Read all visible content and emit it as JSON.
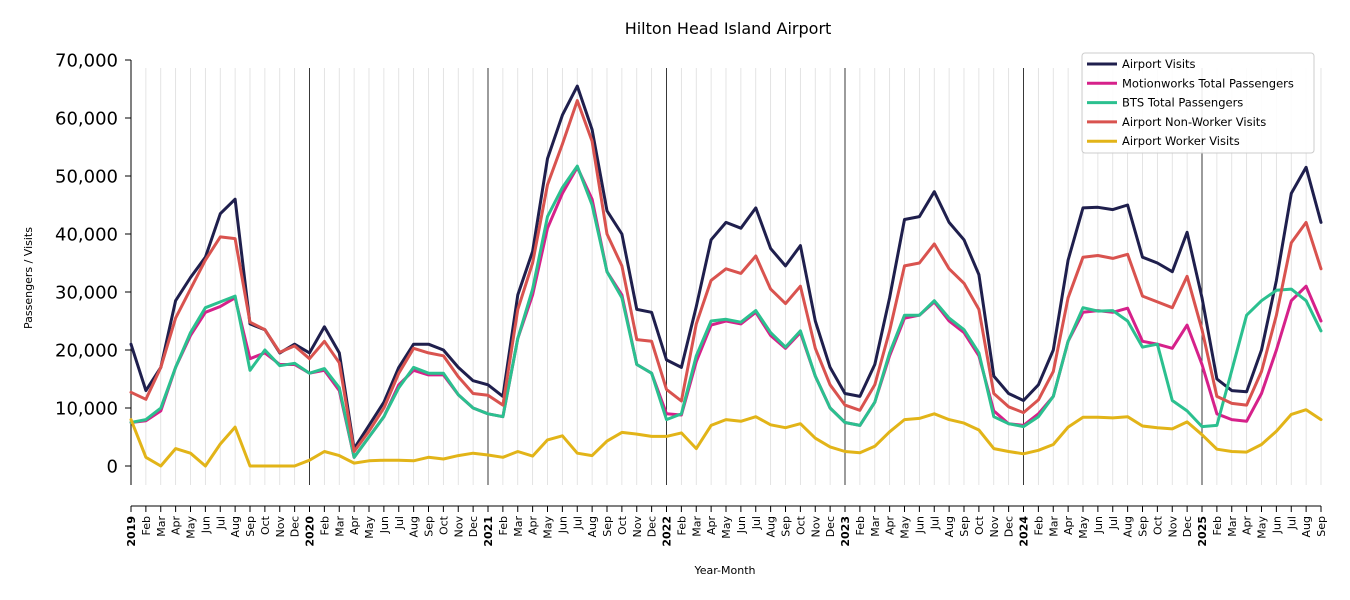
{
  "chart_data": {
    "type": "line",
    "title": "Hilton Head Island Airport",
    "xlabel": "Year-Month",
    "ylabel": "Passengers / Visits",
    "ylim": [
      -3000,
      70000
    ],
    "yticks": [
      0,
      10000,
      20000,
      30000,
      40000,
      50000,
      60000,
      70000
    ],
    "ytick_labels": [
      "0",
      "10,000",
      "20,000",
      "30,000",
      "40,000",
      "50,000",
      "60,000",
      "70,000"
    ],
    "grid": "vertical monthly gridlines, black lines at year starts",
    "legend_position": "top-right",
    "x": [
      "2019",
      "Feb",
      "Mar",
      "Apr",
      "May",
      "Jun",
      "Jul",
      "Aug",
      "Sep",
      "Oct",
      "Nov",
      "Dec",
      "2020",
      "Feb",
      "Mar",
      "Apr",
      "May",
      "Jun",
      "Jul",
      "Aug",
      "Sep",
      "Oct",
      "Nov",
      "Dec",
      "2021",
      "Feb",
      "Mar",
      "Apr",
      "May",
      "Jun",
      "Jul",
      "Aug",
      "Sep",
      "Oct",
      "Nov",
      "Dec",
      "2022",
      "Feb",
      "Mar",
      "Apr",
      "May",
      "Jun",
      "Jul",
      "Aug",
      "Sep",
      "Oct",
      "Nov",
      "Dec",
      "2023",
      "Feb",
      "Mar",
      "Apr",
      "May",
      "Jun",
      "Jul",
      "Aug",
      "Sep",
      "Oct",
      "Nov",
      "Dec",
      "2024",
      "Feb",
      "Mar",
      "Apr",
      "May",
      "Jun",
      "Jul",
      "Aug",
      "Sep",
      "Oct",
      "Nov",
      "Dec",
      "2025",
      "Feb",
      "Mar",
      "Apr",
      "May",
      "Jun",
      "Jul",
      "Aug",
      "Sep"
    ],
    "series": [
      {
        "name": "Airport Visits",
        "color": "#1f1f4d",
        "values": [
          21000,
          13000,
          17000,
          28500,
          32500,
          36000,
          43500,
          46000,
          24500,
          23500,
          19500,
          21000,
          19500,
          24000,
          19500,
          3000,
          7000,
          11000,
          17000,
          21000,
          21000,
          20000,
          17000,
          14700,
          14000,
          12000,
          29500,
          37000,
          53000,
          60500,
          65500,
          58000,
          44000,
          40000,
          27000,
          26500,
          18300,
          17000,
          27500,
          39000,
          42000,
          41000,
          44500,
          37500,
          34500,
          38000,
          25000,
          17000,
          12500,
          12000,
          17500,
          29000,
          42500,
          43000,
          47300,
          42000,
          39000,
          33000,
          15500,
          12500,
          11300,
          14000,
          20000,
          35500,
          44500,
          44600,
          44200,
          45000,
          36000,
          35000,
          33500,
          40300,
          29000,
          15000,
          13000,
          12800,
          20000,
          32000,
          47000,
          51500,
          42000
        ]
      },
      {
        "name": "Motionworks Total Passengers",
        "color": "#d6218a",
        "values": [
          7500,
          7800,
          9500,
          17000,
          22500,
          26500,
          27500,
          29000,
          18500,
          19500,
          17500,
          17500,
          16000,
          16500,
          13000,
          1500,
          5000,
          8500,
          14000,
          16500,
          15700,
          15700,
          12300,
          10000,
          9000,
          8500,
          22000,
          29500,
          41000,
          47000,
          51500,
          46000,
          33500,
          29500,
          17500,
          16000,
          9000,
          8800,
          18000,
          24300,
          25000,
          24500,
          26500,
          22500,
          20300,
          23000,
          15500,
          10000,
          7500,
          7000,
          11000,
          19000,
          25500,
          26000,
          28300,
          25000,
          23000,
          19000,
          9500,
          7300,
          7000,
          9000,
          12000,
          21500,
          26500,
          26800,
          26500,
          27200,
          21500,
          21000,
          20300,
          24300,
          17500,
          9000,
          8000,
          7700,
          12500,
          20000,
          28500,
          31000,
          25000
        ]
      },
      {
        "name": "BTS Total Passengers",
        "color": "#2bc08f",
        "values": [
          7500,
          8000,
          10000,
          17000,
          23000,
          27300,
          28300,
          29300,
          16500,
          20000,
          17300,
          17700,
          16000,
          16800,
          13500,
          1500,
          5000,
          8500,
          13500,
          17000,
          16000,
          16000,
          12300,
          10000,
          9000,
          8500,
          22000,
          30500,
          43000,
          48000,
          51700,
          45000,
          33500,
          29000,
          17500,
          16000,
          8000,
          9000,
          19000,
          25000,
          25300,
          24800,
          26800,
          23000,
          20500,
          23300,
          15500,
          10000,
          7500,
          7000,
          11000,
          19500,
          26000,
          26000,
          28500,
          25500,
          23500,
          19500,
          8500,
          7300,
          6800,
          8500,
          12000,
          21500,
          27300,
          26700,
          26800,
          25000,
          20500,
          21000,
          11300,
          9500,
          6800,
          7000,
          16500,
          26000,
          28500,
          30300,
          30500,
          28500,
          23300
        ]
      },
      {
        "name": "Airport Non-Worker Visits",
        "color": "#d9534f",
        "values": [
          12700,
          11500,
          17000,
          25500,
          30500,
          35500,
          39500,
          39200,
          24800,
          23500,
          19600,
          20700,
          18500,
          21500,
          17800,
          2500,
          6000,
          10000,
          16000,
          20300,
          19500,
          19000,
          15400,
          12500,
          12200,
          10500,
          27000,
          35000,
          48500,
          55500,
          63000,
          56000,
          40000,
          34500,
          21800,
          21500,
          13200,
          11200,
          24500,
          32000,
          34000,
          33200,
          36200,
          30500,
          28000,
          31000,
          20300,
          14000,
          10500,
          9600,
          14000,
          23300,
          34500,
          35000,
          38300,
          34000,
          31500,
          27000,
          12500,
          10200,
          9200,
          11400,
          16300,
          29000,
          36000,
          36300,
          35800,
          36500,
          29300,
          28300,
          27300,
          32700,
          23500,
          12000,
          10800,
          10500,
          16300,
          26000,
          38500,
          42000,
          34000
        ]
      },
      {
        "name": "Airport Worker Visits",
        "color": "#e2b418",
        "values": [
          8000,
          1500,
          0,
          3000,
          2200,
          0,
          3800,
          6700,
          0,
          0,
          0,
          0,
          1000,
          2500,
          1800,
          500,
          900,
          1000,
          1000,
          900,
          1500,
          1200,
          1800,
          2200,
          1900,
          1500,
          2500,
          1700,
          4500,
          5200,
          2200,
          1800,
          4300,
          5800,
          5500,
          5100,
          5100,
          5700,
          3000,
          7000,
          8000,
          7700,
          8500,
          7100,
          6600,
          7300,
          4800,
          3300,
          2500,
          2300,
          3400,
          5900,
          8000,
          8200,
          9000,
          8000,
          7400,
          6200,
          3000,
          2500,
          2100,
          2700,
          3700,
          6700,
          8400,
          8400,
          8300,
          8500,
          6900,
          6600,
          6400,
          7600,
          5400,
          2900,
          2500,
          2400,
          3700,
          6000,
          8900,
          9700,
          8000
        ]
      }
    ]
  }
}
